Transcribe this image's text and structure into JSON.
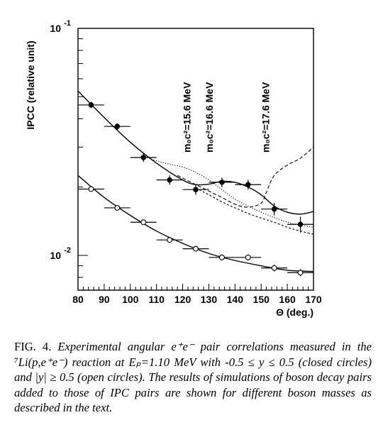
{
  "chart_data": {
    "type": "scatter",
    "xlabel": "Θ (deg.)",
    "ylabel": "IPCC (relative unit)",
    "xlim": [
      80,
      170
    ],
    "ylim": [
      0.008,
      0.1
    ],
    "yscale": "log",
    "x_ticks": [
      80,
      90,
      100,
      110,
      120,
      130,
      140,
      150,
      160,
      170
    ],
    "y_tick_labels": [
      {
        "value": 0.1,
        "base": "10",
        "exp": "-1"
      },
      {
        "value": 0.01,
        "base": "10",
        "exp": "-2"
      }
    ],
    "annotations": [
      {
        "text": "m₀c²=15.6 MeV",
        "x": 123
      },
      {
        "text": "m₀c²=16.6 MeV",
        "x": 131.5
      },
      {
        "text": "m₀c²=17.6 MeV",
        "x": 153
      }
    ],
    "series": [
      {
        "marker": "closed-circle",
        "x": [
          85,
          95,
          105,
          115,
          125,
          135,
          145,
          155,
          165
        ],
        "y": [
          0.046,
          0.037,
          0.027,
          0.0215,
          0.0195,
          0.021,
          0.0205,
          0.016,
          0.0137
        ],
        "yerr": [
          0.0015,
          0.0012,
          0.0012,
          0.001,
          0.001,
          0.001,
          0.001,
          0.001,
          0.0011
        ],
        "xerr": 5
      },
      {
        "marker": "open-circle",
        "x": [
          85,
          95,
          105,
          115,
          125,
          135,
          145,
          155,
          165
        ],
        "y": [
          0.0196,
          0.0162,
          0.014,
          0.0117,
          0.0107,
          0.0098,
          0.0098,
          0.0088,
          0.0084
        ],
        "yerr": [
          0.0004,
          0.0004,
          0.0003,
          0.0003,
          0.0003,
          0.0003,
          0.0003,
          0.0003,
          0.0003
        ],
        "xerr": 5
      }
    ],
    "curves": [
      {
        "style": "solid",
        "x": [
          80,
          90,
          100,
          110,
          120,
          125,
          130,
          135,
          140,
          145,
          150,
          155,
          160,
          165,
          170
        ],
        "y": [
          0.053,
          0.0405,
          0.0315,
          0.0255,
          0.0215,
          0.0205,
          0.0206,
          0.0212,
          0.021,
          0.02,
          0.0185,
          0.0165,
          0.0155,
          0.0152,
          0.0156
        ]
      },
      {
        "style": "dotted",
        "x": [
          108,
          115,
          120,
          125,
          130,
          135,
          140,
          145,
          150,
          155,
          160,
          165,
          170
        ],
        "y": [
          0.0265,
          0.0252,
          0.0245,
          0.0232,
          0.0215,
          0.0195,
          0.0177,
          0.0165,
          0.0155,
          0.0147,
          0.014,
          0.0136,
          0.0133
        ]
      },
      {
        "style": "dashed",
        "x": [
          118,
          125,
          130,
          135,
          140,
          145,
          150,
          152,
          155,
          160,
          165,
          170
        ],
        "y": [
          0.0225,
          0.0205,
          0.0192,
          0.018,
          0.0168,
          0.0163,
          0.017,
          0.019,
          0.0225,
          0.025,
          0.0268,
          0.03
        ]
      },
      {
        "style": "short-dashed",
        "x": [
          125,
          130,
          135,
          140,
          145,
          150,
          155,
          160,
          165,
          170
        ],
        "y": [
          0.0198,
          0.0185,
          0.0172,
          0.0162,
          0.0153,
          0.0146,
          0.014,
          0.0133,
          0.0128,
          0.0124
        ]
      },
      {
        "style": "solid",
        "x": [
          80,
          90,
          100,
          110,
          120,
          130,
          140,
          150,
          160,
          170
        ],
        "y": [
          0.0225,
          0.018,
          0.015,
          0.0128,
          0.0113,
          0.0102,
          0.0095,
          0.009,
          0.0086,
          0.0085
        ]
      }
    ]
  },
  "caption": {
    "fig_label": "FIG. 4.",
    "text": "Experimental angular e⁺e⁻ pair correlations measured in the ⁷Li(p,e⁺e⁻) reaction at Eₚ=1.10 MeV with -0.5 ≤ y ≤ 0.5 (closed circles) and |y| ≥ 0.5 (open circles). The results of simulations of boson decay pairs added to those of IPC pairs are shown for different boson masses as described in the text."
  }
}
